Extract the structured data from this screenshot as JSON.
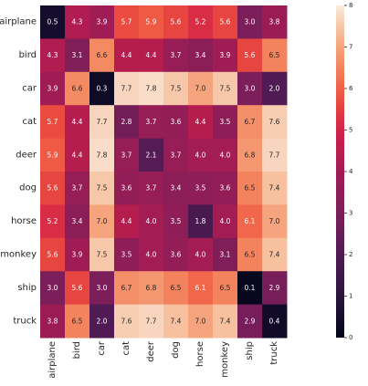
{
  "chart_data": {
    "type": "heatmap",
    "title": "",
    "xlabel": "",
    "ylabel": "",
    "x_categories": [
      "airplane",
      "bird",
      "car",
      "cat",
      "deer",
      "dog",
      "horse",
      "monkey",
      "ship",
      "truck"
    ],
    "y_categories": [
      "airplane",
      "bird",
      "car",
      "cat",
      "deer",
      "dog",
      "horse",
      "monkey",
      "ship",
      "truck"
    ],
    "values": [
      [
        0.5,
        4.3,
        3.9,
        5.7,
        5.9,
        5.6,
        5.2,
        5.6,
        3.0,
        3.8
      ],
      [
        4.3,
        3.1,
        6.6,
        4.4,
        4.4,
        3.7,
        3.4,
        3.9,
        5.6,
        6.5
      ],
      [
        3.9,
        6.6,
        0.3,
        7.7,
        7.8,
        7.5,
        7.0,
        7.5,
        3.0,
        2.0
      ],
      [
        5.7,
        4.4,
        7.7,
        2.8,
        3.7,
        3.6,
        4.4,
        3.5,
        6.7,
        7.6
      ],
      [
        5.9,
        4.4,
        7.8,
        3.7,
        2.1,
        3.7,
        4.0,
        4.0,
        6.8,
        7.7
      ],
      [
        5.6,
        3.7,
        7.5,
        3.6,
        3.7,
        3.4,
        3.5,
        3.6,
        6.5,
        7.4
      ],
      [
        5.2,
        3.4,
        7.0,
        4.4,
        4.0,
        3.5,
        1.8,
        4.0,
        6.1,
        7.0
      ],
      [
        5.6,
        3.9,
        7.5,
        3.5,
        4.0,
        3.6,
        4.0,
        3.1,
        6.5,
        7.4
      ],
      [
        3.0,
        5.6,
        3.0,
        6.7,
        6.8,
        6.5,
        6.1,
        6.5,
        0.1,
        2.9
      ],
      [
        3.8,
        6.5,
        2.0,
        7.6,
        7.7,
        7.4,
        7.0,
        7.4,
        2.9,
        0.4
      ]
    ],
    "colorbar": {
      "range": [
        0,
        8
      ],
      "ticks": [
        "0",
        "1",
        "2",
        "3",
        "4",
        "5",
        "6",
        "7",
        "8"
      ]
    },
    "colormap": "rocket",
    "annotations": true
  }
}
